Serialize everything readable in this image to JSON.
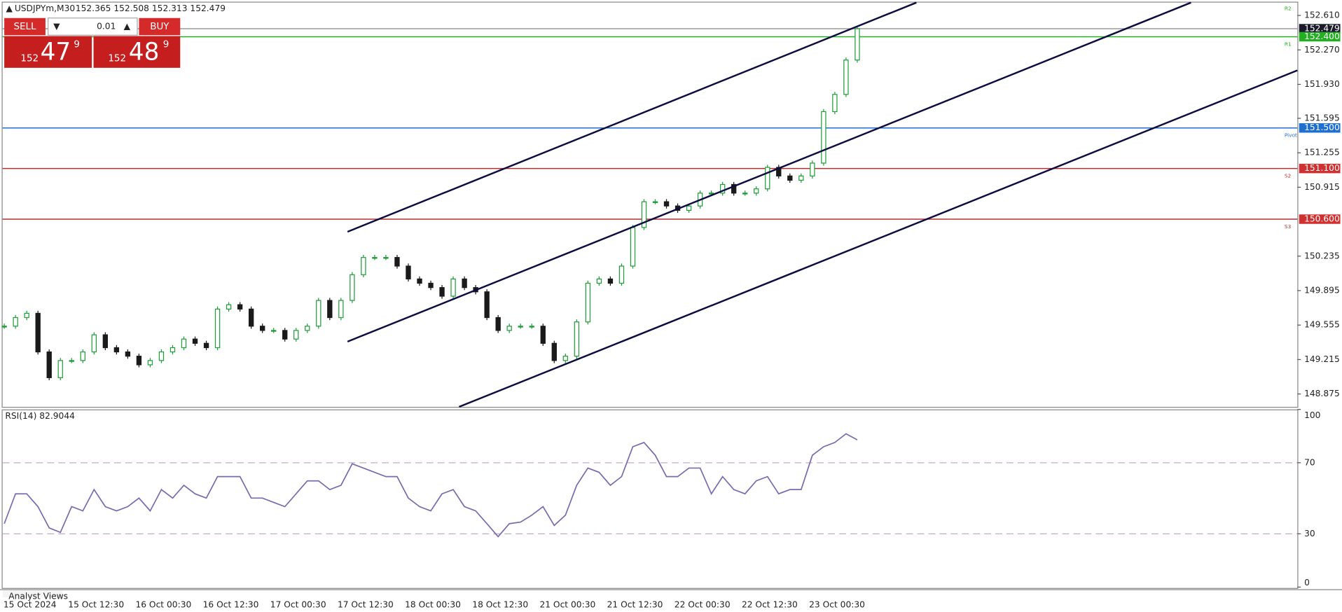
{
  "header": {
    "symbol": "USDJPYm,M30",
    "ohlc": "152.365 152.508 152.313 152.479"
  },
  "trade_panel": {
    "sell": "SELL",
    "buy": "BUY",
    "lot": "0.01",
    "bid_big": "152",
    "bid_main": "47",
    "bid_sup": "9",
    "ask_big": "152",
    "ask_main": "48",
    "ask_sup": "9"
  },
  "chart_data": [
    {
      "type": "candlestick",
      "closes": [
        149.544,
        149.629,
        149.671,
        149.29,
        149.036,
        149.205,
        149.205,
        149.29,
        149.459,
        149.332,
        149.29,
        149.248,
        149.163,
        149.205,
        149.29,
        149.332,
        149.417,
        149.375,
        149.332,
        149.713,
        149.756,
        149.713,
        149.544,
        149.502,
        149.502,
        149.417,
        149.502,
        149.544,
        149.798,
        149.629,
        149.798,
        150.052,
        150.222,
        150.222,
        150.222,
        150.137,
        150.01,
        149.968,
        149.925,
        149.84,
        150.01,
        149.925,
        149.883,
        149.629,
        149.502,
        149.544,
        149.544,
        149.544,
        149.375,
        149.205,
        149.248,
        149.586,
        149.968,
        150.01,
        149.968,
        150.137,
        150.518,
        150.772,
        150.772,
        150.73,
        150.687,
        150.73,
        150.857,
        150.857,
        150.942,
        150.857,
        150.857,
        150.899,
        151.111,
        151.026,
        150.984,
        151.026,
        151.153,
        151.661,
        151.831,
        152.17,
        152.479
      ],
      "up_color": "#1f9e3a",
      "down_color": "#1a1a1a",
      "ylim": [
        148.748,
        152.737
      ],
      "yticks": [
        {
          "value": 152.61,
          "label": "152.610"
        },
        {
          "value": 152.27,
          "label": "152.270"
        },
        {
          "value": 151.93,
          "label": "151.930"
        },
        {
          "value": 151.595,
          "label": "151.595"
        },
        {
          "value": 151.255,
          "label": "151.255"
        },
        {
          "value": 150.915,
          "label": "150.915"
        },
        {
          "value": 150.235,
          "label": "150.235"
        },
        {
          "value": 149.895,
          "label": "149.895"
        },
        {
          "value": 149.555,
          "label": "149.555"
        },
        {
          "value": 149.215,
          "label": "149.215"
        },
        {
          "value": 148.875,
          "label": "148.875"
        }
      ],
      "levels": [
        {
          "value": 152.479,
          "label": "152.479",
          "color": "#9a9a9a",
          "box": "#1a1a2a"
        },
        {
          "value": 152.4,
          "label": "152.400",
          "tag": "R1",
          "color": "#22b022",
          "box": "#22b022"
        },
        {
          "value": 151.5,
          "label": "151.500",
          "tag": "Pivot",
          "color": "#1f6fd0",
          "box": "#1f6fd0"
        },
        {
          "value": 151.1,
          "label": "151.100",
          "tag": "S2",
          "color": "#b03030",
          "box": "#d03030"
        },
        {
          "value": 150.6,
          "label": "150.600",
          "tag": "S3",
          "color": "#b03030",
          "box": "#d03030"
        }
      ],
      "top_tag": "R2"
    },
    {
      "type": "line",
      "title": "RSI(14) 82.9044",
      "color": "#7a6ab0",
      "values": [
        35.7,
        52.5,
        52.5,
        45.3,
        33.3,
        30.8,
        45.3,
        42.9,
        54.9,
        45.3,
        42.9,
        45.3,
        50.1,
        42.9,
        54.9,
        50.1,
        57.3,
        52.5,
        50.1,
        62.2,
        62.2,
        62.2,
        50.1,
        50.1,
        47.7,
        45.3,
        52.5,
        59.8,
        59.8,
        54.9,
        57.3,
        69.4,
        67.0,
        64.6,
        62.2,
        62.2,
        50.1,
        45.3,
        42.9,
        52.5,
        54.9,
        45.3,
        42.9,
        35.7,
        28.4,
        35.7,
        36.6,
        40.5,
        45.3,
        34.7,
        40.5,
        57.3,
        67.0,
        64.6,
        57.3,
        62.2,
        79.0,
        81.4,
        74.2,
        62.2,
        62.2,
        67.0,
        67.0,
        52.5,
        62.2,
        54.9,
        52.5,
        59.8,
        62.2,
        52.5,
        54.9,
        54.9,
        74.2,
        79.0,
        81.4,
        86.3,
        82.9
      ],
      "ylim": [
        0,
        100
      ],
      "yticks": [
        0,
        30,
        70,
        100
      ],
      "levels": [
        30,
        70
      ]
    }
  ],
  "x_labels": [
    "15 Oct 2024",
    "15 Oct 12:30",
    "16 Oct 00:30",
    "16 Oct 12:30",
    "17 Oct 00:30",
    "17 Oct 12:30",
    "18 Oct 00:30",
    "18 Oct 12:30",
    "21 Oct 00:30",
    "21 Oct 12:30",
    "22 Oct 00:30",
    "22 Oct 12:30",
    "23 Oct 00:30"
  ],
  "tabs": [
    "Analyst Views"
  ]
}
